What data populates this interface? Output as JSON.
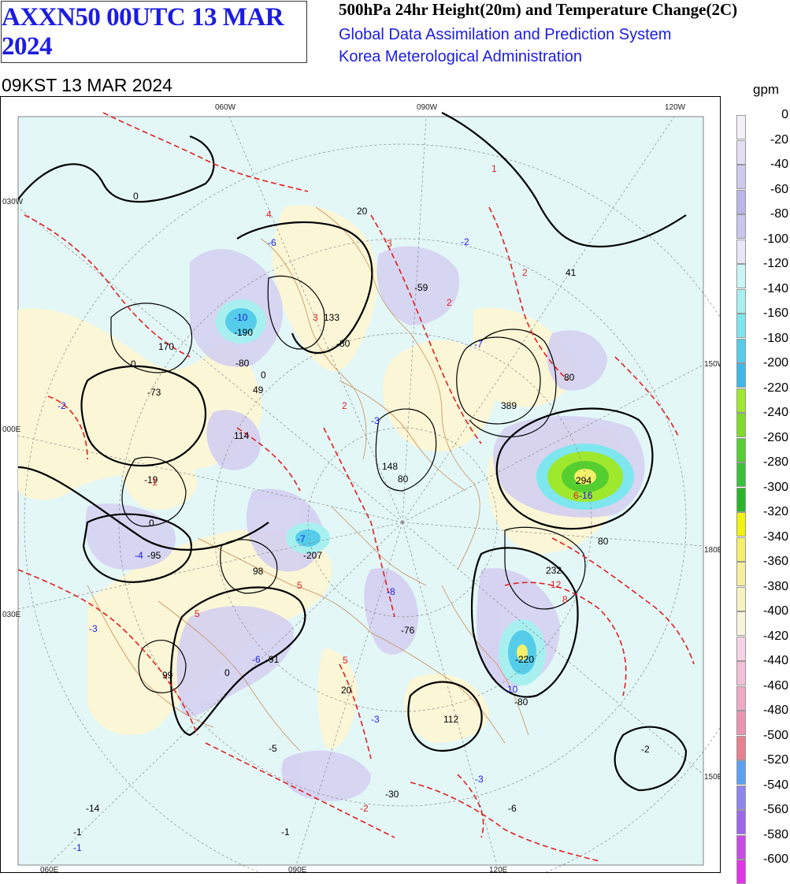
{
  "header": {
    "chart_code": "AXXN50 00UTC 13 MAR 2024",
    "title": "500hPa 24hr Height(20m) and Temperature Change(2C)",
    "system": "Global Data Assimilation and Prediction System",
    "agency": "Korea Meterological Administration",
    "valid_time": "09KST 13 MAR 2024"
  },
  "legend": {
    "unit": "gpm",
    "levels": [
      "0",
      "-20",
      "-40",
      "-60",
      "-80",
      "-100",
      "-120",
      "-140",
      "-160",
      "-180",
      "-200",
      "-220",
      "-240",
      "-260",
      "-280",
      "-300",
      "-320",
      "-340",
      "-360",
      "-380",
      "-400",
      "-420",
      "-440",
      "-460",
      "-480",
      "-500",
      "-520",
      "-540",
      "-560",
      "-580",
      "-600"
    ],
    "colors": [
      "#f3f0fa",
      "#e3def5",
      "#cfcaf0",
      "#bbb5ea",
      "#c9c5ee",
      "#e8e6f7",
      "#c8f5f5",
      "#a8f0f0",
      "#7ee6ef",
      "#55cdea",
      "#3db8ea",
      "#9ee82e",
      "#7ddc2a",
      "#55cf30",
      "#38c23a",
      "#27b627",
      "#f2f20a",
      "#f5f06a",
      "#f7ef9c",
      "#f8f2c0",
      "#f9f5dc",
      "#f7d3e6",
      "#f3bfd6",
      "#f0a9c5",
      "#eb94b2",
      "#e8808f",
      "#5aa1f5",
      "#8f85f0",
      "#a064ee",
      "#c94ae6",
      "#e433e8"
    ]
  },
  "map": {
    "lon_labels": {
      "top": [
        "060W",
        "090W",
        "120W"
      ],
      "left": [
        "030W",
        "000E",
        "030E"
      ],
      "right": [
        "150W",
        "180E",
        "150E"
      ],
      "bottom": [
        "060E",
        "090E",
        "120E"
      ]
    },
    "height_centers": [
      "-190",
      "-73",
      "-95",
      "-91",
      "99",
      "98",
      "170",
      "133",
      "49",
      "114",
      "-59",
      "41",
      "20",
      "-19",
      "148",
      "389",
      "294",
      "232",
      "-220",
      "-80",
      "-76",
      "20",
      "112",
      "-5",
      "-14",
      "-30",
      "-6",
      "-2",
      "-1",
      "-1",
      "-207",
      "-80",
      "-80",
      "80",
      "80",
      "80",
      "0",
      "0",
      "0",
      "0",
      "0"
    ],
    "temp_centers": [
      "-10",
      "-6",
      "-2",
      "-7",
      "-7",
      "-4",
      "-3",
      "-6",
      "-8",
      "-3",
      "-3",
      "-10",
      "-16",
      "-3",
      "-1",
      "-2",
      "4",
      "3",
      "3",
      "1",
      "2",
      "2",
      "2",
      "5",
      "5",
      "5",
      "8",
      "12",
      "6",
      "-1",
      "-2"
    ]
  }
}
